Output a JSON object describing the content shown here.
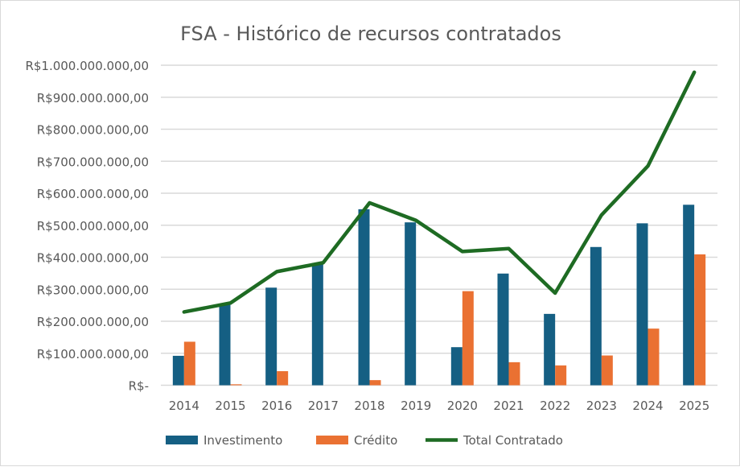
{
  "chart_data": {
    "type": "bar",
    "title": "FSA - Histórico de recursos contratados",
    "xlabel": "",
    "ylabel": "",
    "ylim": [
      0,
      1000000000
    ],
    "grid": true,
    "legend": "bottom",
    "categories": [
      "2014",
      "2015",
      "2016",
      "2017",
      "2018",
      "2019",
      "2020",
      "2021",
      "2022",
      "2023",
      "2024",
      "2025"
    ],
    "yticks": [
      {
        "value": 0,
        "label": "R$-"
      },
      {
        "value": 100000000,
        "label": "R$100.000.000,00"
      },
      {
        "value": 200000000,
        "label": "R$200.000.000,00"
      },
      {
        "value": 300000000,
        "label": "R$300.000.000,00"
      },
      {
        "value": 400000000,
        "label": "R$400.000.000,00"
      },
      {
        "value": 500000000,
        "label": "R$500.000.000,00"
      },
      {
        "value": 600000000,
        "label": "R$600.000.000,00"
      },
      {
        "value": 700000000,
        "label": "R$700.000.000,00"
      },
      {
        "value": 800000000,
        "label": "R$800.000.000,00"
      },
      {
        "value": 900000000,
        "label": "R$900.000.000,00"
      },
      {
        "value": 1000000000,
        "label": "R$1.000.000.000,00"
      }
    ],
    "series": [
      {
        "name": "Investimento",
        "type": "bar",
        "color": "#155f83",
        "values": [
          92000000,
          254000000,
          305000000,
          382000000,
          550000000,
          509000000,
          119000000,
          349000000,
          223000000,
          432000000,
          506000000,
          564000000
        ]
      },
      {
        "name": "Crédito",
        "type": "bar",
        "color": "#ea7132",
        "values": [
          136000000,
          3000000,
          44000000,
          0,
          16000000,
          0,
          294000000,
          72000000,
          62000000,
          93000000,
          177000000,
          409000000
        ]
      },
      {
        "name": "Total  Contratado",
        "type": "line",
        "color": "#1e6b23",
        "values": [
          229000000,
          257000000,
          355000000,
          383000000,
          570000000,
          515000000,
          418000000,
          427000000,
          288000000,
          532000000,
          685000000,
          978000000
        ]
      }
    ]
  }
}
